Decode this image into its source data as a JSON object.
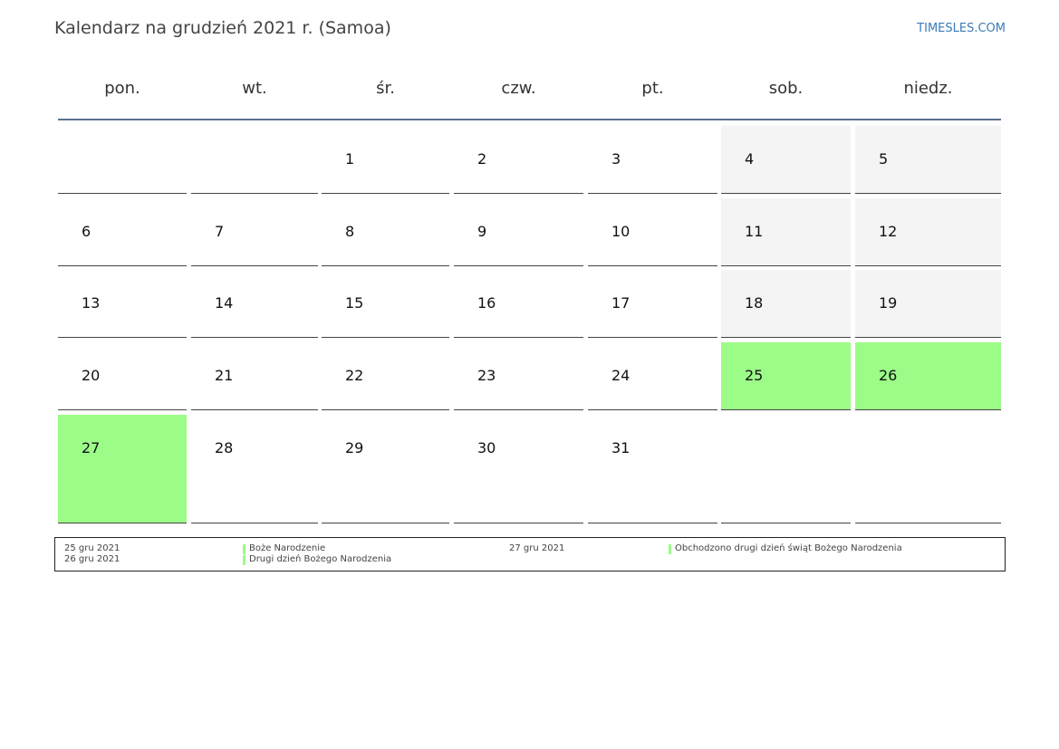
{
  "header": {
    "title": "Kalendarz na grudzień 2021 r. (Samoa)",
    "site": "TIMESLES.COM"
  },
  "weekdays": [
    "pon.",
    "wt.",
    "śr.",
    "czw.",
    "pt.",
    "sob.",
    "niedz."
  ],
  "weeks": [
    [
      {
        "day": null
      },
      {
        "day": null
      },
      {
        "day": 1
      },
      {
        "day": 2
      },
      {
        "day": 3
      },
      {
        "day": 4,
        "fill": "#f4f4f4"
      },
      {
        "day": 5,
        "fill": "#f4f4f4"
      }
    ],
    [
      {
        "day": 6
      },
      {
        "day": 7
      },
      {
        "day": 8
      },
      {
        "day": 9
      },
      {
        "day": 10
      },
      {
        "day": 11,
        "fill": "#f4f4f4"
      },
      {
        "day": 12,
        "fill": "#f4f4f4"
      }
    ],
    [
      {
        "day": 13
      },
      {
        "day": 14
      },
      {
        "day": 15
      },
      {
        "day": 16
      },
      {
        "day": 17
      },
      {
        "day": 18,
        "fill": "#f4f4f4"
      },
      {
        "day": 19,
        "fill": "#f4f4f4"
      }
    ],
    [
      {
        "day": 20
      },
      {
        "day": 21
      },
      {
        "day": 22
      },
      {
        "day": 23
      },
      {
        "day": 24
      },
      {
        "day": 25,
        "fill": "#9cfc88"
      },
      {
        "day": 26,
        "fill": "#9cfc88"
      }
    ],
    [
      {
        "day": 27,
        "fill": "#9cfc88"
      },
      {
        "day": 28
      },
      {
        "day": 29
      },
      {
        "day": 30
      },
      {
        "day": 31
      },
      {
        "day": null
      },
      {
        "day": null
      }
    ]
  ],
  "holidays": [
    {
      "date": "25 gru 2021",
      "name": "Boże Narodzenie"
    },
    {
      "date": "26 gru 2021",
      "name": "Drugi dzień Bożego Narodzenia"
    },
    {
      "date": "27 gru 2021",
      "name": "Obchodzono drugi dzień świąt Bożego Narodzenia"
    }
  ]
}
